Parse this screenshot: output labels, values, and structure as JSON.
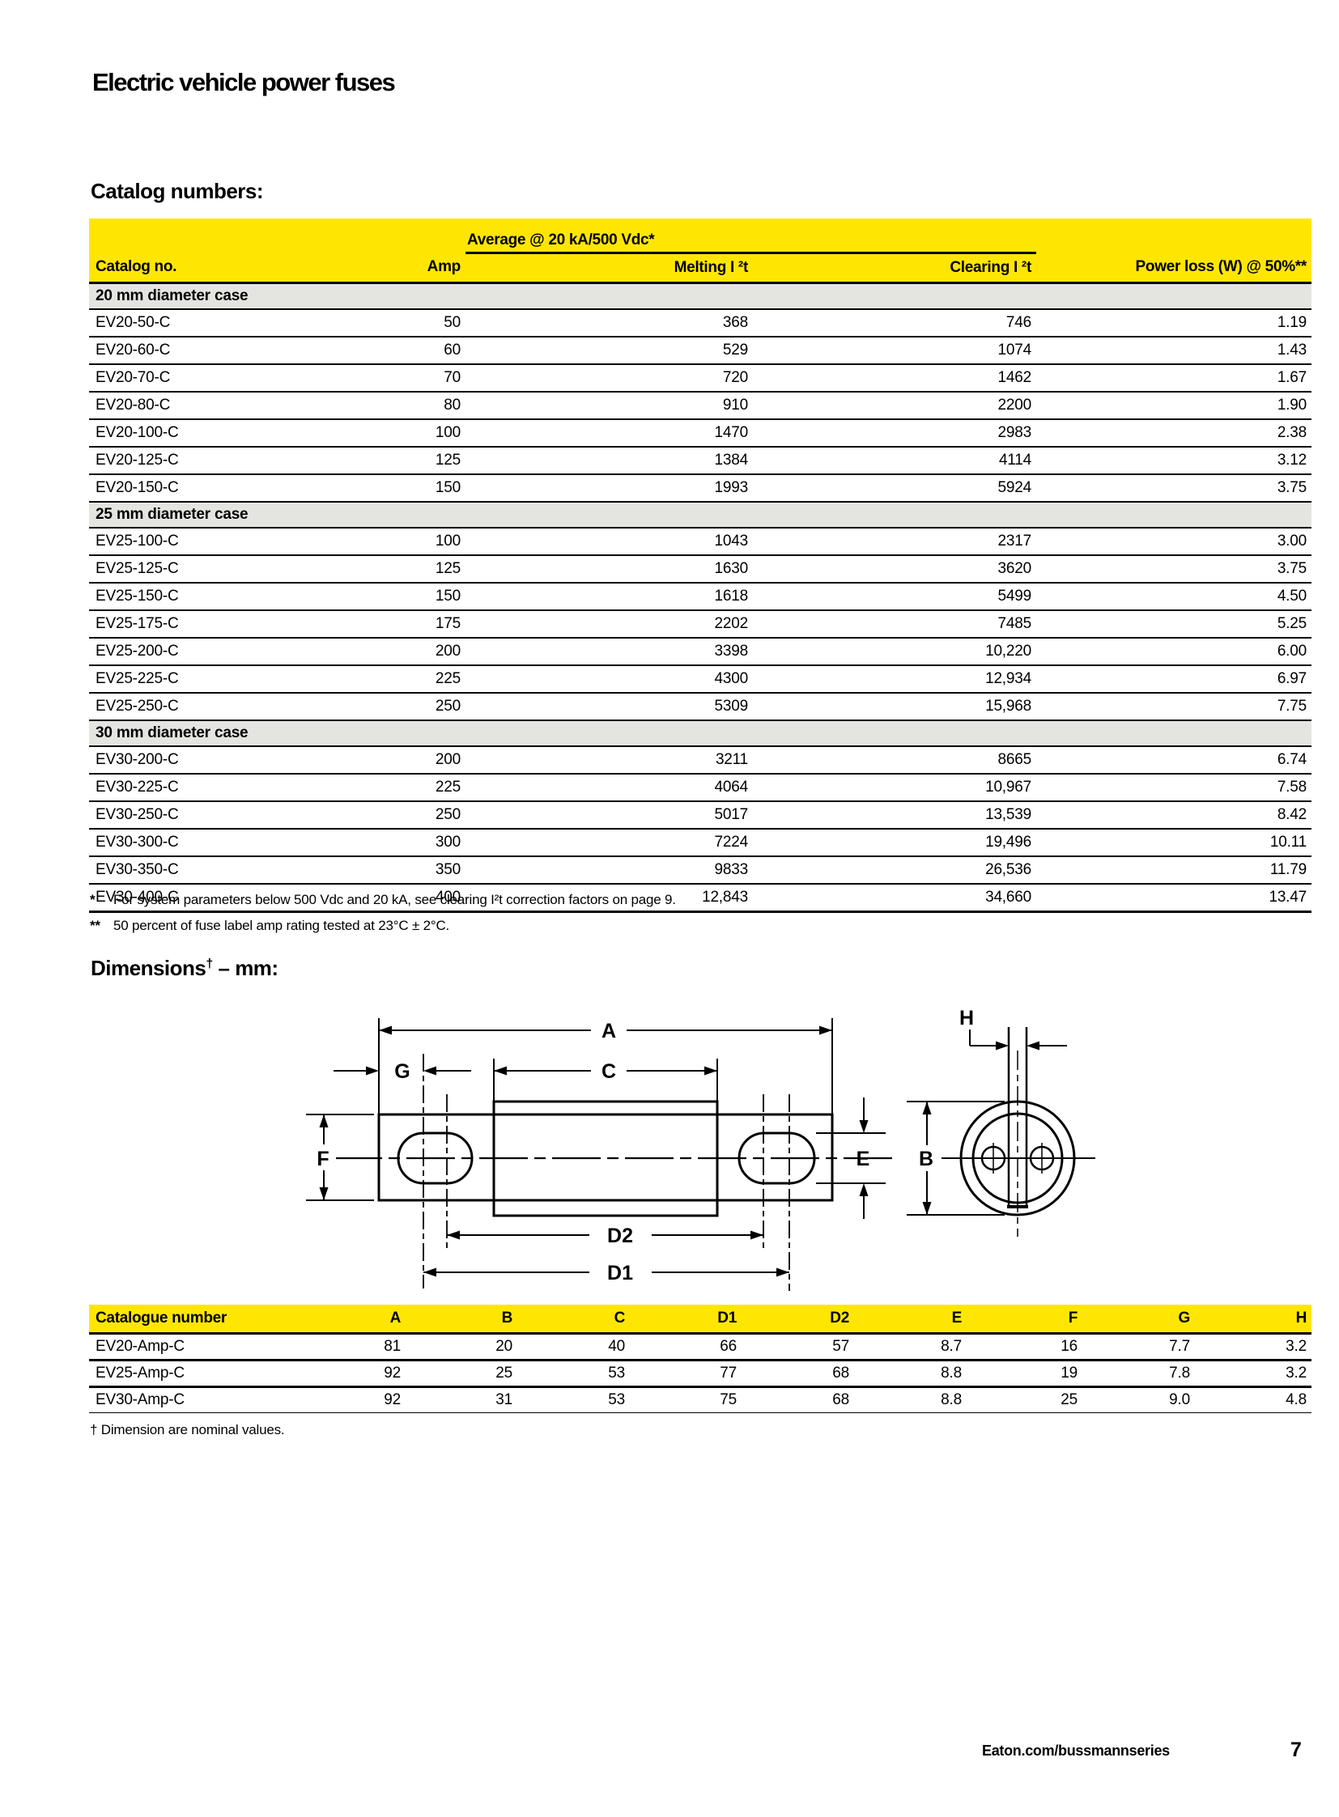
{
  "page": {
    "title": "Electric vehicle power fuses",
    "footer_link": "Eaton.com/bussmannseries",
    "page_number": "7"
  },
  "catalog": {
    "heading": "Catalog numbers:",
    "group_header": "Average @ 20 kA/500 Vdc*",
    "columns": [
      "Catalog no.",
      "Amp",
      "Melting I ²t",
      "Clearing I ²t",
      "Power loss (W) @ 50%**"
    ],
    "sections": [
      {
        "label": "20 mm diameter case",
        "rows": [
          [
            "EV20-50-C",
            "50",
            "368",
            "746",
            "1.19"
          ],
          [
            "EV20-60-C",
            "60",
            "529",
            "1074",
            "1.43"
          ],
          [
            "EV20-70-C",
            "70",
            "720",
            "1462",
            "1.67"
          ],
          [
            "EV20-80-C",
            "80",
            "910",
            "2200",
            "1.90"
          ],
          [
            "EV20-100-C",
            "100",
            "1470",
            "2983",
            "2.38"
          ],
          [
            "EV20-125-C",
            "125",
            "1384",
            "4114",
            "3.12"
          ],
          [
            "EV20-150-C",
            "150",
            "1993",
            "5924",
            "3.75"
          ]
        ]
      },
      {
        "label": "25 mm diameter case",
        "rows": [
          [
            "EV25-100-C",
            "100",
            "1043",
            "2317",
            "3.00"
          ],
          [
            "EV25-125-C",
            "125",
            "1630",
            "3620",
            "3.75"
          ],
          [
            "EV25-150-C",
            "150",
            "1618",
            "5499",
            "4.50"
          ],
          [
            "EV25-175-C",
            "175",
            "2202",
            "7485",
            "5.25"
          ],
          [
            "EV25-200-C",
            "200",
            "3398",
            "10,220",
            "6.00"
          ],
          [
            "EV25-225-C",
            "225",
            "4300",
            "12,934",
            "6.97"
          ],
          [
            "EV25-250-C",
            "250",
            "5309",
            "15,968",
            "7.75"
          ]
        ]
      },
      {
        "label": "30 mm diameter case",
        "rows": [
          [
            "EV30-200-C",
            "200",
            "3211",
            "8665",
            "6.74"
          ],
          [
            "EV30-225-C",
            "225",
            "4064",
            "10,967",
            "7.58"
          ],
          [
            "EV30-250-C",
            "250",
            "5017",
            "13,539",
            "8.42"
          ],
          [
            "EV30-300-C",
            "300",
            "7224",
            "19,496",
            "10.11"
          ],
          [
            "EV30-350-C",
            "350",
            "9833",
            "26,536",
            "11.79"
          ],
          [
            "EV30-400-C",
            "400",
            "12,843",
            "34,660",
            "13.47"
          ]
        ]
      }
    ],
    "footnotes": [
      {
        "marker": "*",
        "text": "For system parameters below 500 Vdc and 20 kA, see clearing I²t correction factors on page 9."
      },
      {
        "marker": "**",
        "text": "50 percent of fuse label amp rating tested at 23°C ± 2°C."
      }
    ]
  },
  "dimensions": {
    "heading": {
      "main": "Dimensions",
      "sup": "†",
      "rest": " – mm:"
    },
    "diagram_labels": {
      "A": "A",
      "G": "G",
      "C": "C",
      "F": "F",
      "E": "E",
      "B": "B",
      "D2": "D2",
      "D1": "D1",
      "H": "H"
    },
    "columns": [
      "Catalogue number",
      "A",
      "B",
      "C",
      "D1",
      "D2",
      "E",
      "F",
      "G",
      "H"
    ],
    "rows": [
      [
        "EV20-Amp-C",
        "81",
        "20",
        "40",
        "66",
        "57",
        "8.7",
        "16",
        "7.7",
        "3.2"
      ],
      [
        "EV25-Amp-C",
        "92",
        "25",
        "53",
        "77",
        "68",
        "8.8",
        "19",
        "7.8",
        "3.2"
      ],
      [
        "EV30-Amp-C",
        "92",
        "31",
        "53",
        "75",
        "68",
        "8.8",
        "25",
        "9.0",
        "4.8"
      ]
    ],
    "footnote": "† Dimension are nominal values."
  }
}
